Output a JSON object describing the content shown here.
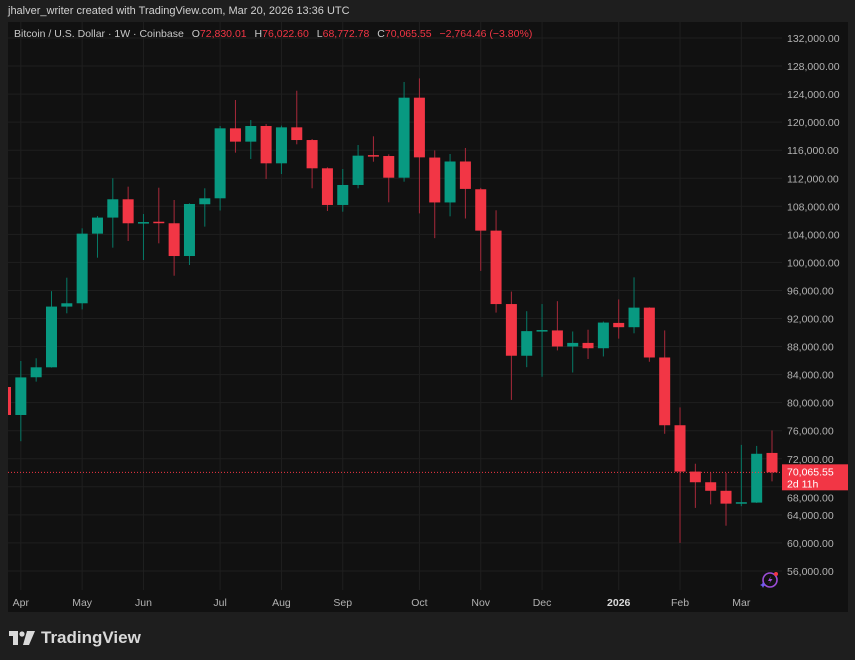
{
  "credit": "jhalver_writer created with TradingView.com, Mar 20, 2026 13:36 UTC",
  "legend": {
    "symbol": "Bitcoin / U.S. Dollar · 1W · Coinbase",
    "o_label": "O",
    "o": "72,830.01",
    "h_label": "H",
    "h": "76,022.60",
    "l_label": "L",
    "l": "68,772.78",
    "c_label": "C",
    "c": "70,065.55",
    "change": "−2,764.46 (−3.80%)"
  },
  "price_label": {
    "value": "70,065.55",
    "countdown": "2d 11h"
  },
  "brand": "TradingView",
  "colors": {
    "up": "#089981",
    "down": "#f23645",
    "background": "#111111",
    "grid": "#1f1f1f"
  },
  "icons": [
    "tradingview-logo-icon",
    "alert-lightning-icon"
  ],
  "chart_data": {
    "type": "candlestick",
    "interval": "1W",
    "ylim": [
      54000,
      134000
    ],
    "grid": true,
    "y_ticks": [
      "132,000.00",
      "128,000.00",
      "124,000.00",
      "120,000.00",
      "116,000.00",
      "112,000.00",
      "108,000.00",
      "104,000.00",
      "100,000.00",
      "96,000.00",
      "92,000.00",
      "88,000.00",
      "84,000.00",
      "80,000.00",
      "76,000.00",
      "72,000.00",
      "68,000.00",
      "64,000.00",
      "60,000.00",
      "56,000.00"
    ],
    "x_ticks": [
      {
        "label": "Apr",
        "index": 1
      },
      {
        "label": "May",
        "index": 5
      },
      {
        "label": "Jun",
        "index": 9
      },
      {
        "label": "Jul",
        "index": 14
      },
      {
        "label": "Aug",
        "index": 18
      },
      {
        "label": "Sep",
        "index": 22
      },
      {
        "label": "Oct",
        "index": 27
      },
      {
        "label": "Nov",
        "index": 31
      },
      {
        "label": "Dec",
        "index": 35
      },
      {
        "label": "2026",
        "index": 40,
        "bold": true
      },
      {
        "label": "Feb",
        "index": 44
      },
      {
        "label": "Mar",
        "index": 48
      }
    ],
    "last_price": 70065.55,
    "ohlc": [
      [
        82230,
        84000,
        77000,
        78240
      ],
      [
        78240,
        85940,
        74500,
        83600
      ],
      [
        83620,
        86330,
        83000,
        85040
      ],
      [
        85040,
        95900,
        85000,
        93700
      ],
      [
        93700,
        97820,
        92740,
        94170
      ],
      [
        94170,
        104860,
        93300,
        104100
      ],
      [
        104100,
        106620,
        100670,
        106390
      ],
      [
        106390,
        112000,
        102100,
        109000
      ],
      [
        109000,
        110800,
        103050,
        105580
      ],
      [
        105650,
        106900,
        100340,
        105750
      ],
      [
        105800,
        110650,
        102720,
        105600
      ],
      [
        105580,
        108900,
        98100,
        100910
      ],
      [
        100910,
        108430,
        99630,
        108330
      ],
      [
        108290,
        110570,
        105100,
        109140
      ],
      [
        109140,
        119450,
        107400,
        119120
      ],
      [
        119120,
        123160,
        115650,
        117220
      ],
      [
        117220,
        120300,
        114750,
        119450
      ],
      [
        119450,
        119740,
        111900,
        114130
      ],
      [
        114130,
        119500,
        112600,
        119260
      ],
      [
        119260,
        124480,
        116840,
        117450
      ],
      [
        117450,
        117600,
        110570,
        113420
      ],
      [
        113420,
        113560,
        107330,
        108190
      ],
      [
        108190,
        113320,
        107230,
        111040
      ],
      [
        111040,
        116740,
        110570,
        115220
      ],
      [
        115300,
        117980,
        114360,
        115200
      ],
      [
        115170,
        115410,
        108570,
        112080
      ],
      [
        112080,
        125730,
        111510,
        123490
      ],
      [
        123490,
        126250,
        107000,
        114980
      ],
      [
        114950,
        115970,
        103460,
        108550
      ],
      [
        108550,
        115460,
        106570,
        114390
      ],
      [
        114390,
        116320,
        106260,
        110480
      ],
      [
        110430,
        110630,
        98790,
        104530
      ],
      [
        104530,
        107430,
        92840,
        94060
      ],
      [
        94060,
        95840,
        80390,
        86690
      ],
      [
        86690,
        93040,
        85060,
        90200
      ],
      [
        90250,
        94060,
        83690,
        90350
      ],
      [
        90300,
        94470,
        87450,
        88010
      ],
      [
        88010,
        90150,
        84300,
        88520
      ],
      [
        88520,
        90400,
        86230,
        87760
      ],
      [
        87760,
        91570,
        86590,
        91420
      ],
      [
        91370,
        94720,
        89130,
        90760
      ],
      [
        90760,
        97870,
        89890,
        93550
      ],
      [
        93550,
        93600,
        85830,
        86440
      ],
      [
        86440,
        90300,
        75560,
        76780
      ],
      [
        76780,
        79320,
        60000,
        70170
      ],
      [
        70170,
        71290,
        64990,
        68650
      ],
      [
        68650,
        69970,
        65500,
        67430
      ],
      [
        67430,
        69970,
        62450,
        65600
      ],
      [
        65700,
        73980,
        65240,
        65800
      ],
      [
        65750,
        73830,
        65700,
        72710
      ],
      [
        72830.01,
        76022.6,
        68772.78,
        70065.55
      ]
    ]
  }
}
